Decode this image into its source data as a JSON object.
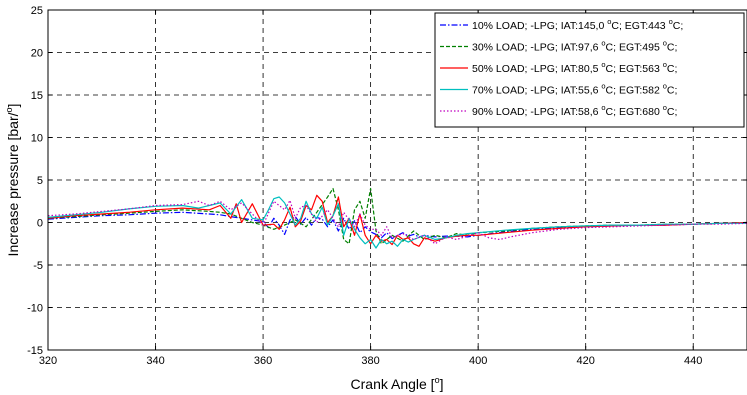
{
  "chart_data": {
    "type": "line",
    "title": "",
    "xlabel_text": "Crank Angle [",
    "xlabel_sup": "o",
    "xlabel_close": "]",
    "ylabel_text": "Increase pressure [bar/",
    "ylabel_sup": "o",
    "ylabel_close": "]",
    "xlim": [
      320,
      450
    ],
    "ylim": [
      -15,
      25
    ],
    "x_ticks": [
      "320",
      "340",
      "360",
      "380",
      "400",
      "420",
      "440"
    ],
    "y_ticks": [
      "25",
      "20",
      "15",
      "10",
      "5",
      "0",
      "-5",
      "-10",
      "-15"
    ],
    "grid": true,
    "legend_position": "top-right",
    "series": [
      {
        "name": "10% LOAD; -LPG; IAT:145,0 °C; EGT:443 °C;",
        "legend_parts": [
          "10% LOAD; -LPG; IAT:145,0 ",
          "o",
          "C; EGT:443 ",
          "o",
          "C;"
        ],
        "color": "#0000ff",
        "dash": "6,2,1.5,2",
        "x": [
          320,
          325,
          330,
          335,
          340,
          345,
          350,
          352,
          354,
          356,
          358,
          360,
          361,
          362,
          363,
          364,
          365,
          366,
          367,
          368,
          369,
          370,
          371,
          372,
          373,
          374,
          375,
          376,
          377,
          378,
          379,
          380,
          381,
          382,
          383,
          384,
          385,
          386,
          387,
          388,
          389,
          390,
          392,
          394,
          396,
          398,
          400,
          405,
          410,
          415,
          420,
          425,
          430,
          435,
          440,
          445,
          450
        ],
        "y": [
          0.4,
          0.6,
          0.8,
          0.9,
          1.1,
          1.2,
          1.0,
          0.9,
          0.7,
          0.5,
          0.3,
          0.1,
          -0.6,
          0.5,
          -0.3,
          -1.4,
          0.3,
          0.7,
          -0.2,
          0.6,
          -0.3,
          0.6,
          0.4,
          -0.5,
          0.3,
          -1.0,
          0.5,
          -0.8,
          0.2,
          -1.2,
          -0.5,
          -1.1,
          -1.4,
          -1.8,
          -1.2,
          -1.9,
          -1.5,
          -1.2,
          -1.6,
          -1.4,
          -1.7,
          -1.5,
          -1.7,
          -1.6,
          -1.6,
          -1.7,
          -1.5,
          -1.1,
          -0.8,
          -0.6,
          -0.5,
          -0.4,
          -0.3,
          -0.3,
          -0.2,
          -0.1,
          0.0
        ]
      },
      {
        "name": "30% LOAD; -LPG; IAT:97,6 °C; EGT:495 °C;",
        "legend_parts": [
          "30% LOAD; -LPG; IAT:97,6 ",
          "o",
          "C; EGT:495 ",
          "o",
          "C;"
        ],
        "color": "#008000",
        "dash": "4,2",
        "x": [
          320,
          325,
          330,
          335,
          340,
          345,
          350,
          352,
          354,
          356,
          358,
          360,
          362,
          364,
          366,
          368,
          370,
          372,
          373,
          374,
          375,
          376,
          377,
          378,
          379,
          380,
          381,
          382,
          384,
          386,
          388,
          390,
          392,
          394,
          396,
          398,
          400,
          405,
          410,
          415,
          420,
          425,
          430,
          435,
          440,
          445,
          450
        ],
        "y": [
          0.5,
          0.7,
          0.9,
          1.1,
          1.3,
          1.5,
          1.3,
          1.2,
          1.0,
          0.5,
          0.0,
          -0.3,
          -0.8,
          -0.3,
          0.3,
          -0.5,
          1.2,
          3.0,
          4.0,
          1.5,
          -2.0,
          -2.5,
          1.5,
          2.5,
          0.5,
          4.0,
          -1.0,
          -2.5,
          -1.5,
          -2.2,
          -1.0,
          -2.0,
          -1.5,
          -1.8,
          -1.3,
          -1.5,
          -1.2,
          -1.0,
          -0.7,
          -0.5,
          -0.4,
          -0.3,
          -0.3,
          -0.2,
          -0.2,
          -0.1,
          0.0
        ]
      },
      {
        "name": "50% LOAD; -LPG; IAT:80,5 °C; EGT:563 °C;",
        "legend_parts": [
          "50% LOAD; -LPG; IAT:80,5 ",
          "o",
          "C; EGT:563 ",
          "o",
          "C;"
        ],
        "color": "#ff0000",
        "dash": "",
        "x": [
          320,
          325,
          330,
          335,
          340,
          345,
          350,
          352,
          354,
          355,
          356,
          358,
          360,
          362,
          363,
          364,
          365,
          366,
          367,
          368,
          369,
          370,
          371,
          372,
          373,
          374,
          375,
          376,
          377,
          378,
          379,
          380,
          381,
          382,
          383,
          384,
          385,
          386,
          387,
          388,
          389,
          390,
          392,
          394,
          396,
          398,
          400,
          405,
          410,
          415,
          420,
          425,
          430,
          435,
          440,
          445,
          450
        ],
        "y": [
          0.5,
          0.8,
          1.0,
          1.2,
          1.5,
          1.7,
          1.5,
          2.0,
          0.5,
          2.2,
          0.0,
          2.2,
          -0.3,
          -0.2,
          -0.8,
          0.3,
          1.8,
          -0.5,
          0.2,
          2.0,
          1.5,
          3.2,
          2.5,
          0.0,
          0.8,
          3.0,
          -0.5,
          0.5,
          -1.5,
          1.0,
          -1.5,
          -2.5,
          -1.5,
          -2.2,
          -2.0,
          -2.6,
          -1.5,
          -2.0,
          -1.8,
          -2.5,
          -2.8,
          -1.8,
          -2.2,
          -1.8,
          -1.6,
          -1.5,
          -1.5,
          -1.2,
          -0.9,
          -0.7,
          -0.5,
          -0.4,
          -0.3,
          -0.3,
          -0.2,
          -0.1,
          0.0
        ]
      },
      {
        "name": "70% LOAD; -LPG; IAT:55,6 °C; EGT:582 °C;",
        "legend_parts": [
          "70% LOAD; -LPG; IAT:55,6 ",
          "o",
          "C; EGT:582 ",
          "o",
          "C;"
        ],
        "color": "#00bfbf",
        "dash": "",
        "x": [
          320,
          325,
          330,
          335,
          340,
          345,
          348,
          350,
          352,
          354,
          356,
          358,
          360,
          361,
          362,
          363,
          364,
          365,
          366,
          367,
          368,
          369,
          370,
          371,
          372,
          373,
          374,
          375,
          376,
          377,
          378,
          379,
          380,
          381,
          382,
          383,
          384,
          385,
          386,
          387,
          388,
          390,
          392,
          394,
          396,
          398,
          400,
          405,
          410,
          415,
          420,
          425,
          430,
          435,
          440,
          445,
          450
        ],
        "y": [
          0.6,
          0.9,
          1.2,
          1.6,
          1.9,
          2.0,
          1.7,
          2.0,
          2.3,
          1.0,
          2.7,
          0.5,
          0.3,
          1.5,
          2.8,
          3.0,
          2.3,
          1.0,
          -0.3,
          0.5,
          2.5,
          1.0,
          0.5,
          1.8,
          -0.3,
          0.8,
          2.2,
          -1.5,
          0.5,
          -0.8,
          -1.8,
          -2.5,
          -2.0,
          -3.0,
          -2.0,
          -2.5,
          -2.2,
          -2.8,
          -2.0,
          -2.3,
          -2.0,
          -1.5,
          -2.0,
          -1.8,
          -1.5,
          -1.3,
          -1.2,
          -0.9,
          -0.7,
          -0.5,
          -0.4,
          -0.3,
          -0.3,
          -0.2,
          -0.2,
          -0.1,
          -0.1
        ]
      },
      {
        "name": "90% LOAD; -LPG; IAT:58,6 °C; EGT:680 °C;",
        "legend_parts": [
          "90% LOAD; -LPG; IAT:58,6 ",
          "o",
          "C; EGT:680 ",
          "o",
          "C;"
        ],
        "color": "#bf00bf",
        "dash": "1.5,2",
        "x": [
          320,
          325,
          330,
          335,
          340,
          345,
          348,
          350,
          352,
          354,
          356,
          358,
          360,
          362,
          364,
          365,
          366,
          367,
          368,
          369,
          370,
          372,
          374,
          375,
          376,
          377,
          378,
          379,
          380,
          381,
          382,
          383,
          384,
          386,
          388,
          390,
          392,
          394,
          396,
          398,
          400,
          402,
          404,
          406,
          410,
          415,
          420,
          425,
          430,
          435,
          440,
          445,
          450
        ],
        "y": [
          0.8,
          1.0,
          1.3,
          1.6,
          2.0,
          2.1,
          2.5,
          2.0,
          2.5,
          1.5,
          2.3,
          1.0,
          -0.3,
          2.5,
          1.5,
          2.6,
          0.5,
          1.8,
          2.0,
          1.0,
          0.0,
          1.5,
          -0.5,
          1.2,
          0.3,
          -0.5,
          1.0,
          -0.3,
          -0.8,
          -0.8,
          -1.5,
          -0.5,
          -1.8,
          -1.3,
          -2.0,
          -1.5,
          -2.5,
          -1.7,
          -2.0,
          -1.6,
          -1.2,
          -1.8,
          -2.0,
          -1.7,
          -1.2,
          -0.8,
          -0.6,
          -0.5,
          -0.4,
          -0.3,
          -0.2,
          -0.2,
          -0.1
        ]
      }
    ]
  }
}
